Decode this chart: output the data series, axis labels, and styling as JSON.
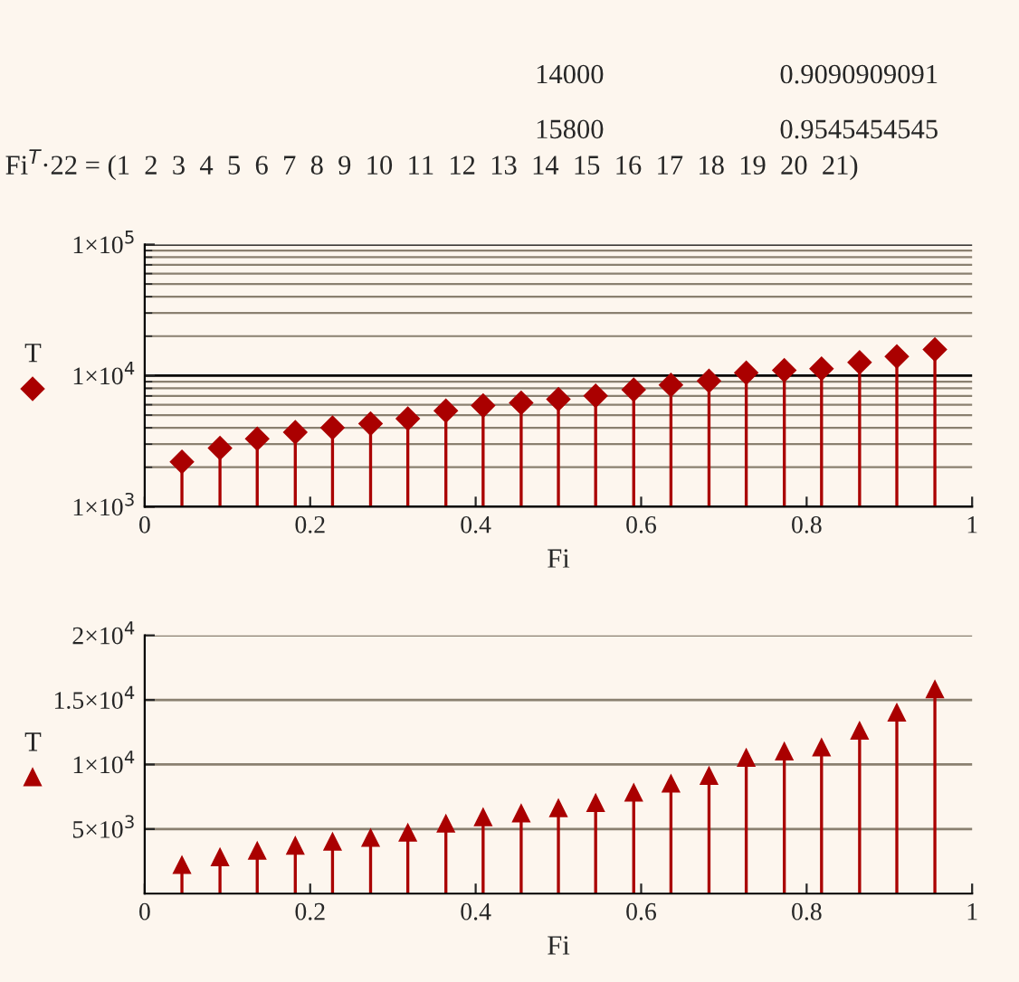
{
  "chart_data": [
    {
      "type": "lollipop",
      "xlabel": "Fi",
      "ylabel": "T",
      "log": "y",
      "grid": true,
      "marker": "diamond",
      "annotations": [
        "14000",
        "15800",
        "0.9090909091",
        "0.9545454545",
        "Fi$^{T}$·22 = (1  2  3  4  5  6  7  8  9  10  11  12  13  14  15  16  17  18  19  20  21)"
      ],
      "x": [
        0.045,
        0.091,
        0.136,
        0.182,
        0.227,
        0.273,
        0.318,
        0.364,
        0.409,
        0.455,
        0.5,
        0.545,
        0.591,
        0.636,
        0.682,
        0.727,
        0.773,
        0.818,
        0.864,
        0.909,
        0.955
      ],
      "series": [
        {
          "color": "#aa0000",
          "values": [
            2200,
            2800,
            3300,
            3700,
            4000,
            4300,
            4700,
            5400,
            5900,
            6200,
            6600,
            7000,
            7800,
            8500,
            9100,
            10500,
            11000,
            11300,
            12600,
            14000,
            15800
          ]
        }
      ],
      "xlim": [
        0,
        1
      ],
      "xticks": [
        0,
        0.2,
        0.4,
        0.6,
        0.8,
        1
      ],
      "ylim": [
        1000,
        100000
      ],
      "yticks": [
        {
          "value": 1000,
          "label": "1×10$^{3}$"
        },
        {
          "value": 10000,
          "label": "1×10$^{4}$"
        },
        {
          "value": 100000,
          "label": "1×10$^{5}$"
        }
      ]
    },
    {
      "type": "lollipop",
      "xlabel": "Fi",
      "ylabel": "T",
      "grid": "y",
      "marker": "triangle",
      "x": [
        0.045,
        0.091,
        0.136,
        0.182,
        0.227,
        0.273,
        0.318,
        0.364,
        0.409,
        0.455,
        0.5,
        0.545,
        0.591,
        0.636,
        0.682,
        0.727,
        0.773,
        0.818,
        0.864,
        0.909,
        0.955
      ],
      "series": [
        {
          "color": "#aa0000",
          "values": [
            2200,
            2800,
            3300,
            3700,
            4000,
            4300,
            4700,
            5400,
            5900,
            6200,
            6600,
            7000,
            7800,
            8500,
            9100,
            10500,
            11000,
            11300,
            12600,
            14000,
            15800
          ]
        }
      ],
      "xlim": [
        0,
        1
      ],
      "xticks": [
        0,
        0.2,
        0.4,
        0.6,
        0.8,
        1
      ],
      "ylim": [
        0,
        20000
      ],
      "yticks": [
        {
          "value": 5000,
          "label": "5×10$^{3}$"
        },
        {
          "value": 10000,
          "label": "1×10$^{4}$"
        },
        {
          "value": 15000,
          "label": "1.5×10$^{4}$"
        },
        {
          "value": 20000,
          "label": "2×10$^{4}$"
        }
      ]
    }
  ]
}
